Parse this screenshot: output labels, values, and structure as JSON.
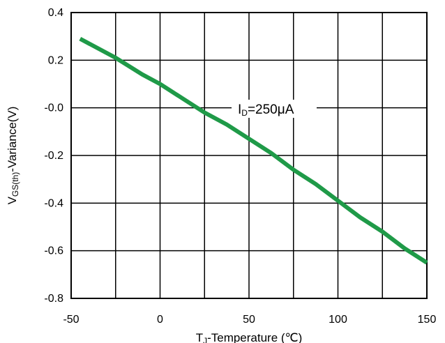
{
  "chart_data": {
    "type": "line",
    "xlabel": {
      "main": "T",
      "sub": "J",
      "rest": "-Temperature (℃)"
    },
    "ylabel": {
      "main": "V",
      "sub": "GS(th)",
      "rest": "-Variance(V)"
    },
    "xlim": [
      -50,
      150
    ],
    "ylim": [
      -0.8,
      0.4
    ],
    "x_ticks": [
      -50,
      0,
      50,
      100,
      150
    ],
    "x_tick_labels": [
      "-50",
      "0",
      "50",
      "100",
      "150"
    ],
    "y_ticks": [
      0.4,
      0.2,
      0.0,
      -0.2,
      -0.4,
      -0.6,
      -0.8
    ],
    "y_tick_labels": [
      "0.4",
      "0.2",
      "-0.0",
      "-0.2",
      "-0.4",
      "-0.6",
      "-0.8"
    ],
    "grid": true,
    "annotation": {
      "main": "I",
      "sub": "D",
      "rest": "=250μA"
    },
    "series": [
      {
        "color": "#1f9a48",
        "x": [
          -45,
          -25,
          -10,
          0,
          12.5,
          25,
          37.5,
          50,
          62.5,
          75,
          87.5,
          100,
          112.5,
          125,
          137.5,
          150
        ],
        "y": [
          0.29,
          0.21,
          0.14,
          0.1,
          0.04,
          -0.02,
          -0.07,
          -0.13,
          -0.19,
          -0.26,
          -0.32,
          -0.39,
          -0.46,
          -0.52,
          -0.59,
          -0.65
        ]
      }
    ]
  }
}
